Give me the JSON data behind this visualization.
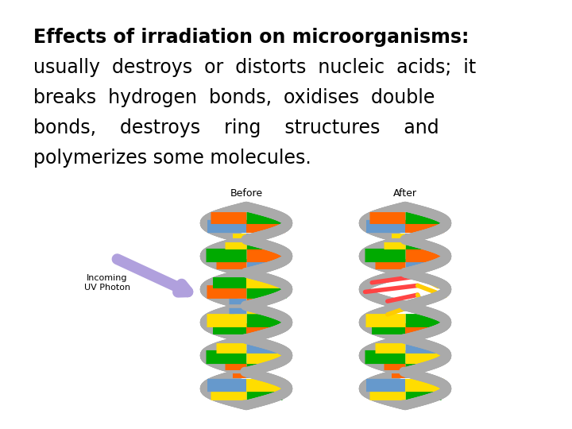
{
  "background_color": "#ffffff",
  "title_bold": "Effects of irradiation on microorganisms:",
  "line1": "usually  destroys  or  distorts  nucleic  acids;  it",
  "line2": "breaks  hydrogen  bonds,  oxidises  double",
  "line3": "bonds,    destroys    ring    structures    and",
  "line4": "polymerizes some molecules.",
  "title_fontsize": 17,
  "body_fontsize": 17,
  "text_color": "#000000",
  "label_before": "Before",
  "label_after": "After",
  "label_uv": "Incoming\nUV Photon",
  "base_colors": [
    "#ff6600",
    "#00aa00",
    "#ffdd00",
    "#6699cc"
  ],
  "strand_color": "#aaaaaa",
  "arrow_color": "#b0a0dd"
}
